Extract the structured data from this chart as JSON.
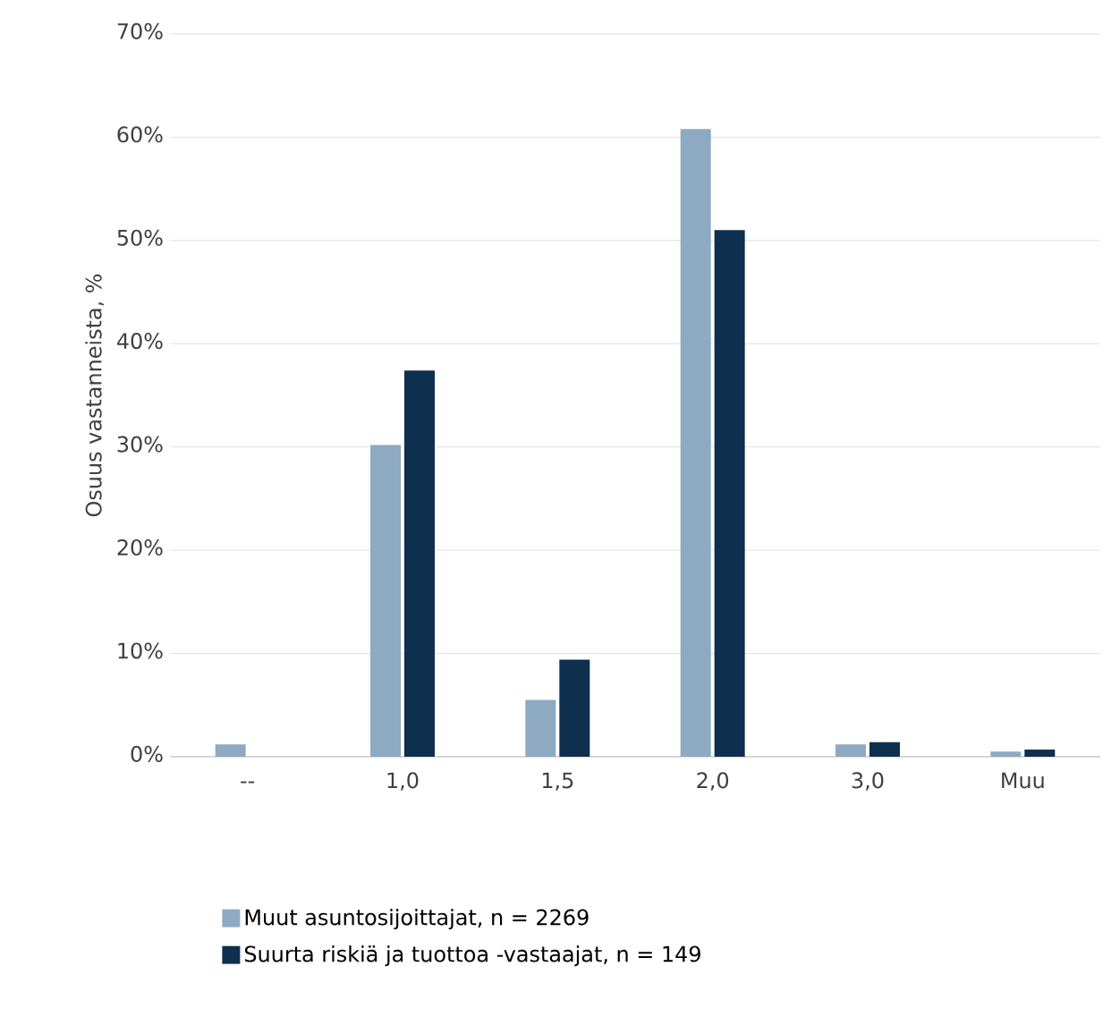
{
  "chart_data": {
    "type": "bar",
    "ylabel": "Osuus vastanneista, %",
    "categories": [
      "--",
      "1,0",
      "1,5",
      "2,0",
      "3,0",
      "Muu"
    ],
    "series": [
      {
        "name": "Muut asuntosijoittajat, n = 2269",
        "color": "#8eaac2",
        "values": [
          1.2,
          30.2,
          5.5,
          60.8,
          1.2,
          0.5
        ]
      },
      {
        "name": "Suurta riskiä ja tuottoa -vastaajat, n = 149",
        "color": "#0e2f4e",
        "values": [
          0,
          37.4,
          9.4,
          51.0,
          1.4,
          0.7
        ]
      }
    ],
    "ylim": [
      0,
      70
    ],
    "yticks": [
      {
        "value": 0,
        "label": "0%"
      },
      {
        "value": 10,
        "label": "10%"
      },
      {
        "value": 20,
        "label": "20%"
      },
      {
        "value": 30,
        "label": "30%"
      },
      {
        "value": 40,
        "label": "40%"
      },
      {
        "value": 50,
        "label": "50%"
      },
      {
        "value": 60,
        "label": "60%"
      },
      {
        "value": 70,
        "label": "70%"
      }
    ],
    "grid": "y",
    "legend": "bottom"
  }
}
